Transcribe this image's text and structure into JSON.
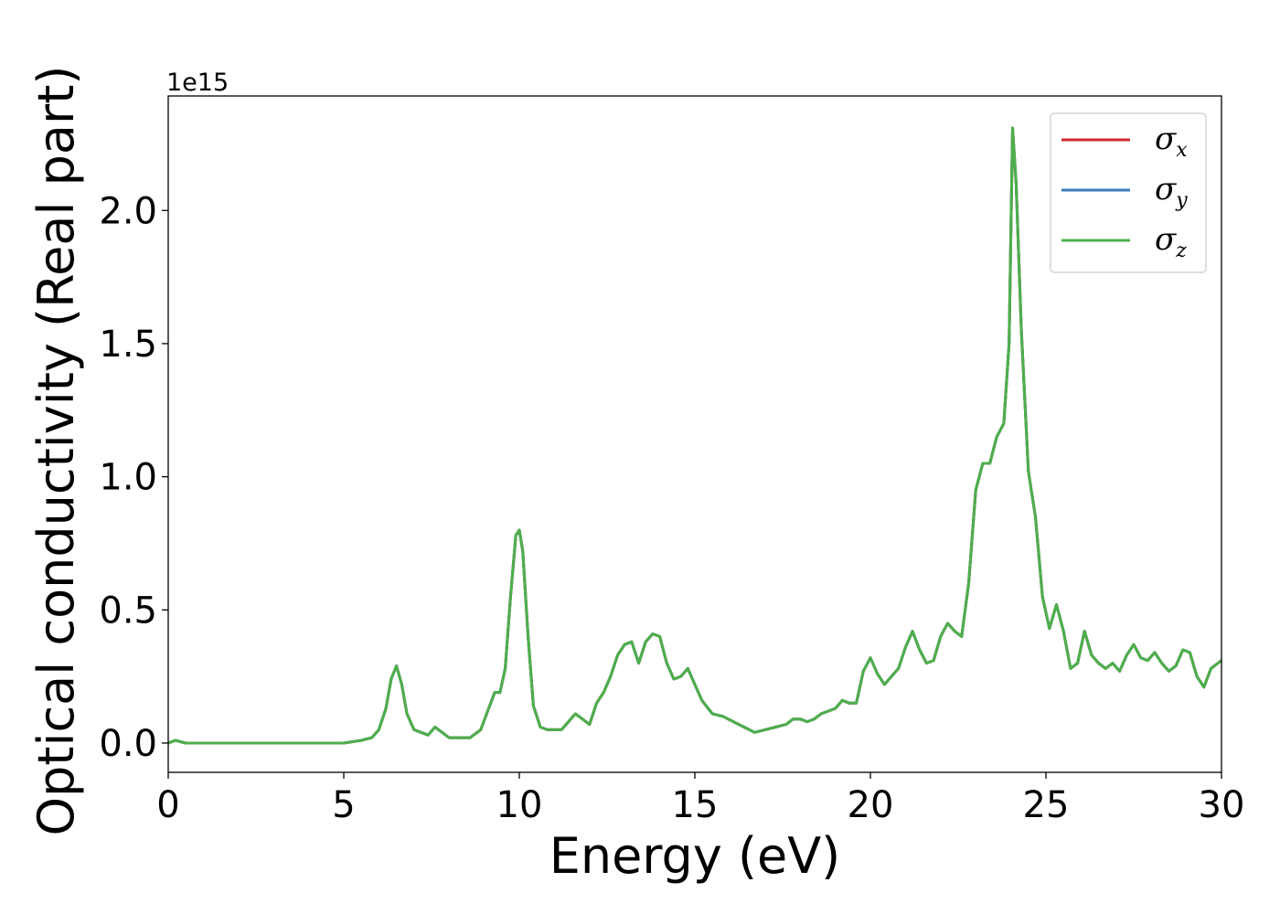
{
  "chart_data": {
    "type": "line",
    "title": "",
    "xlabel": "Energy (eV)",
    "ylabel": "Optical conductivity (Real part)",
    "y_multiplier_label": "1e15",
    "xlim": [
      0,
      30
    ],
    "ylim": [
      -0.11,
      2.43
    ],
    "xticks": [
      0,
      5,
      10,
      15,
      20,
      25,
      30
    ],
    "xtick_labels": [
      "0",
      "5",
      "10",
      "15",
      "20",
      "25",
      "30"
    ],
    "yticks": [
      0.0,
      0.5,
      1.0,
      1.5,
      2.0
    ],
    "ytick_labels": [
      "0.0",
      "0.5",
      "1.0",
      "1.5",
      "2.0"
    ],
    "grid": false,
    "legend_position": "top-right",
    "series": [
      {
        "name": "σx",
        "legend_symbol": "σ",
        "legend_subscript": "x",
        "color": "#d62728",
        "x": [
          0,
          0.2,
          0.5,
          1,
          2,
          3,
          4,
          5,
          5.5,
          5.8,
          6.0,
          6.2,
          6.35,
          6.5,
          6.65,
          6.8,
          7.0,
          7.2,
          7.4,
          7.6,
          7.8,
          8.0,
          8.3,
          8.6,
          8.9,
          9.1,
          9.3,
          9.45,
          9.6,
          9.75,
          9.9,
          10.0,
          10.1,
          10.25,
          10.4,
          10.6,
          10.8,
          11.0,
          11.2,
          11.4,
          11.6,
          11.8,
          12.0,
          12.2,
          12.4,
          12.6,
          12.8,
          13.0,
          13.2,
          13.4,
          13.6,
          13.8,
          14.0,
          14.2,
          14.4,
          14.6,
          14.8,
          15.0,
          15.2,
          15.5,
          15.8,
          16.1,
          16.4,
          16.7,
          17.0,
          17.3,
          17.6,
          17.8,
          18.0,
          18.2,
          18.4,
          18.6,
          18.8,
          19.0,
          19.2,
          19.4,
          19.6,
          19.8,
          20.0,
          20.2,
          20.4,
          20.6,
          20.8,
          21.0,
          21.2,
          21.4,
          21.6,
          21.8,
          22.0,
          22.2,
          22.4,
          22.6,
          22.8,
          23.0,
          23.2,
          23.4,
          23.6,
          23.8,
          23.95,
          24.05,
          24.15,
          24.3,
          24.5,
          24.7,
          24.9,
          25.1,
          25.3,
          25.5,
          25.7,
          25.9,
          26.1,
          26.3,
          26.5,
          26.7,
          26.9,
          27.1,
          27.3,
          27.5,
          27.7,
          27.9,
          28.1,
          28.3,
          28.5,
          28.7,
          28.9,
          29.1,
          29.3,
          29.5,
          29.7,
          30.0
        ],
        "y": [
          0.0,
          0.01,
          0.0,
          0.0,
          0.0,
          0.0,
          0.0,
          0.0,
          0.01,
          0.02,
          0.05,
          0.13,
          0.24,
          0.29,
          0.22,
          0.11,
          0.05,
          0.04,
          0.03,
          0.06,
          0.04,
          0.02,
          0.02,
          0.02,
          0.05,
          0.12,
          0.19,
          0.19,
          0.28,
          0.55,
          0.78,
          0.8,
          0.72,
          0.4,
          0.14,
          0.06,
          0.05,
          0.05,
          0.05,
          0.08,
          0.11,
          0.09,
          0.07,
          0.15,
          0.19,
          0.25,
          0.33,
          0.37,
          0.38,
          0.3,
          0.38,
          0.41,
          0.4,
          0.3,
          0.24,
          0.25,
          0.28,
          0.22,
          0.16,
          0.11,
          0.1,
          0.08,
          0.06,
          0.04,
          0.05,
          0.06,
          0.07,
          0.09,
          0.09,
          0.08,
          0.09,
          0.11,
          0.12,
          0.13,
          0.16,
          0.15,
          0.15,
          0.27,
          0.32,
          0.26,
          0.22,
          0.25,
          0.28,
          0.36,
          0.42,
          0.35,
          0.3,
          0.31,
          0.4,
          0.45,
          0.42,
          0.4,
          0.6,
          0.95,
          1.05,
          1.05,
          1.15,
          1.2,
          1.5,
          2.31,
          2.1,
          1.55,
          1.02,
          0.85,
          0.55,
          0.43,
          0.52,
          0.42,
          0.28,
          0.3,
          0.42,
          0.33,
          0.3,
          0.28,
          0.3,
          0.27,
          0.33,
          0.37,
          0.32,
          0.31,
          0.34,
          0.3,
          0.27,
          0.29,
          0.35,
          0.34,
          0.25,
          0.21,
          0.28,
          0.31
        ]
      },
      {
        "name": "σy",
        "legend_symbol": "σ",
        "legend_subscript": "y",
        "color": "#3a7bb8",
        "x": [
          0,
          0.2,
          0.5,
          1,
          2,
          3,
          4,
          5,
          5.5,
          5.8,
          6.0,
          6.2,
          6.35,
          6.5,
          6.65,
          6.8,
          7.0,
          7.2,
          7.4,
          7.6,
          7.8,
          8.0,
          8.3,
          8.6,
          8.9,
          9.1,
          9.3,
          9.45,
          9.6,
          9.75,
          9.9,
          10.0,
          10.1,
          10.25,
          10.4,
          10.6,
          10.8,
          11.0,
          11.2,
          11.4,
          11.6,
          11.8,
          12.0,
          12.2,
          12.4,
          12.6,
          12.8,
          13.0,
          13.2,
          13.4,
          13.6,
          13.8,
          14.0,
          14.2,
          14.4,
          14.6,
          14.8,
          15.0,
          15.2,
          15.5,
          15.8,
          16.1,
          16.4,
          16.7,
          17.0,
          17.3,
          17.6,
          17.8,
          18.0,
          18.2,
          18.4,
          18.6,
          18.8,
          19.0,
          19.2,
          19.4,
          19.6,
          19.8,
          20.0,
          20.2,
          20.4,
          20.6,
          20.8,
          21.0,
          21.2,
          21.4,
          21.6,
          21.8,
          22.0,
          22.2,
          22.4,
          22.6,
          22.8,
          23.0,
          23.2,
          23.4,
          23.6,
          23.8,
          23.95,
          24.05,
          24.15,
          24.3,
          24.5,
          24.7,
          24.9,
          25.1,
          25.3,
          25.5,
          25.7,
          25.9,
          26.1,
          26.3,
          26.5,
          26.7,
          26.9,
          27.1,
          27.3,
          27.5,
          27.7,
          27.9,
          28.1,
          28.3,
          28.5,
          28.7,
          28.9,
          29.1,
          29.3,
          29.5,
          29.7,
          30.0
        ],
        "y": [
          0.0,
          0.01,
          0.0,
          0.0,
          0.0,
          0.0,
          0.0,
          0.0,
          0.01,
          0.02,
          0.05,
          0.13,
          0.24,
          0.29,
          0.22,
          0.11,
          0.05,
          0.04,
          0.03,
          0.06,
          0.04,
          0.02,
          0.02,
          0.02,
          0.05,
          0.12,
          0.19,
          0.19,
          0.28,
          0.55,
          0.78,
          0.8,
          0.72,
          0.4,
          0.14,
          0.06,
          0.05,
          0.05,
          0.05,
          0.08,
          0.11,
          0.09,
          0.07,
          0.15,
          0.19,
          0.25,
          0.33,
          0.37,
          0.38,
          0.3,
          0.38,
          0.41,
          0.4,
          0.3,
          0.24,
          0.25,
          0.28,
          0.22,
          0.16,
          0.11,
          0.1,
          0.08,
          0.06,
          0.04,
          0.05,
          0.06,
          0.07,
          0.09,
          0.09,
          0.08,
          0.09,
          0.11,
          0.12,
          0.13,
          0.16,
          0.15,
          0.15,
          0.27,
          0.32,
          0.26,
          0.22,
          0.25,
          0.28,
          0.36,
          0.42,
          0.35,
          0.3,
          0.31,
          0.4,
          0.45,
          0.42,
          0.4,
          0.6,
          0.95,
          1.05,
          1.05,
          1.15,
          1.2,
          1.5,
          2.31,
          2.1,
          1.55,
          1.02,
          0.85,
          0.55,
          0.43,
          0.52,
          0.42,
          0.28,
          0.3,
          0.42,
          0.33,
          0.3,
          0.28,
          0.3,
          0.27,
          0.33,
          0.37,
          0.32,
          0.31,
          0.34,
          0.3,
          0.27,
          0.29,
          0.35,
          0.34,
          0.25,
          0.21,
          0.28,
          0.31
        ]
      },
      {
        "name": "σz",
        "legend_symbol": "σ",
        "legend_subscript": "z",
        "color": "#4daf4a",
        "x": [
          0,
          0.2,
          0.5,
          1,
          2,
          3,
          4,
          5,
          5.5,
          5.8,
          6.0,
          6.2,
          6.35,
          6.5,
          6.65,
          6.8,
          7.0,
          7.2,
          7.4,
          7.6,
          7.8,
          8.0,
          8.3,
          8.6,
          8.9,
          9.1,
          9.3,
          9.45,
          9.6,
          9.75,
          9.9,
          10.0,
          10.1,
          10.25,
          10.4,
          10.6,
          10.8,
          11.0,
          11.2,
          11.4,
          11.6,
          11.8,
          12.0,
          12.2,
          12.4,
          12.6,
          12.8,
          13.0,
          13.2,
          13.4,
          13.6,
          13.8,
          14.0,
          14.2,
          14.4,
          14.6,
          14.8,
          15.0,
          15.2,
          15.5,
          15.8,
          16.1,
          16.4,
          16.7,
          17.0,
          17.3,
          17.6,
          17.8,
          18.0,
          18.2,
          18.4,
          18.6,
          18.8,
          19.0,
          19.2,
          19.4,
          19.6,
          19.8,
          20.0,
          20.2,
          20.4,
          20.6,
          20.8,
          21.0,
          21.2,
          21.4,
          21.6,
          21.8,
          22.0,
          22.2,
          22.4,
          22.6,
          22.8,
          23.0,
          23.2,
          23.4,
          23.6,
          23.8,
          23.95,
          24.05,
          24.15,
          24.3,
          24.5,
          24.7,
          24.9,
          25.1,
          25.3,
          25.5,
          25.7,
          25.9,
          26.1,
          26.3,
          26.5,
          26.7,
          26.9,
          27.1,
          27.3,
          27.5,
          27.7,
          27.9,
          28.1,
          28.3,
          28.5,
          28.7,
          28.9,
          29.1,
          29.3,
          29.5,
          29.7,
          30.0
        ],
        "y": [
          0.0,
          0.01,
          0.0,
          0.0,
          0.0,
          0.0,
          0.0,
          0.0,
          0.01,
          0.02,
          0.05,
          0.13,
          0.24,
          0.29,
          0.22,
          0.11,
          0.05,
          0.04,
          0.03,
          0.06,
          0.04,
          0.02,
          0.02,
          0.02,
          0.05,
          0.12,
          0.19,
          0.19,
          0.28,
          0.55,
          0.78,
          0.8,
          0.72,
          0.4,
          0.14,
          0.06,
          0.05,
          0.05,
          0.05,
          0.08,
          0.11,
          0.09,
          0.07,
          0.15,
          0.19,
          0.25,
          0.33,
          0.37,
          0.38,
          0.3,
          0.38,
          0.41,
          0.4,
          0.3,
          0.24,
          0.25,
          0.28,
          0.22,
          0.16,
          0.11,
          0.1,
          0.08,
          0.06,
          0.04,
          0.05,
          0.06,
          0.07,
          0.09,
          0.09,
          0.08,
          0.09,
          0.11,
          0.12,
          0.13,
          0.16,
          0.15,
          0.15,
          0.27,
          0.32,
          0.26,
          0.22,
          0.25,
          0.28,
          0.36,
          0.42,
          0.35,
          0.3,
          0.31,
          0.4,
          0.45,
          0.42,
          0.4,
          0.6,
          0.95,
          1.05,
          1.05,
          1.15,
          1.2,
          1.5,
          2.31,
          2.1,
          1.55,
          1.02,
          0.85,
          0.55,
          0.43,
          0.52,
          0.42,
          0.28,
          0.3,
          0.42,
          0.33,
          0.3,
          0.28,
          0.3,
          0.27,
          0.33,
          0.37,
          0.32,
          0.31,
          0.34,
          0.3,
          0.27,
          0.29,
          0.35,
          0.34,
          0.25,
          0.21,
          0.28,
          0.31
        ]
      }
    ]
  }
}
